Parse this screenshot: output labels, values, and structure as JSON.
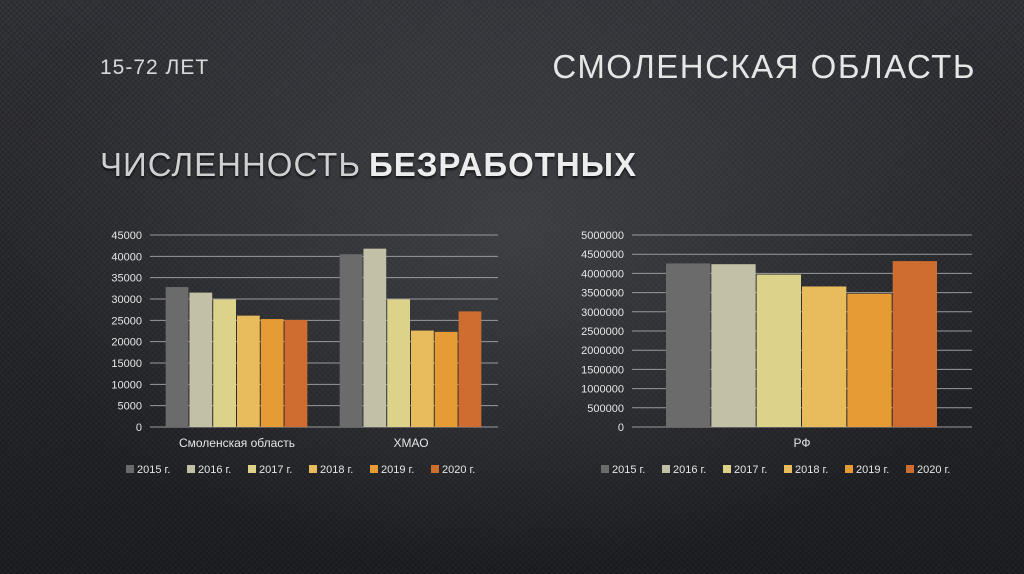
{
  "header": {
    "age_label": "15-72 ЛЕТ",
    "region_title": "СМОЛЕНСКАЯ ОБЛАСТЬ",
    "title_regular": "ЧИСЛЕННОСТЬ",
    "title_bold": "БЕЗРАБОТНЫХ"
  },
  "chart_data": [
    {
      "type": "bar",
      "categories": [
        "Смоленская область",
        "ХМАО"
      ],
      "series": [
        {
          "name": "2015 г.",
          "color": "#6b6b6b",
          "values": [
            32800,
            40500
          ]
        },
        {
          "name": "2016 г.",
          "color": "#c2c0a6",
          "values": [
            31500,
            41800
          ]
        },
        {
          "name": "2017 г.",
          "color": "#dcd28a",
          "values": [
            29900,
            29900
          ]
        },
        {
          "name": "2018 г.",
          "color": "#e8bb5c",
          "values": [
            26100,
            22600
          ]
        },
        {
          "name": "2019 г.",
          "color": "#e69b35",
          "values": [
            25300,
            22300
          ]
        },
        {
          "name": "2020 г.",
          "color": "#cf6d31",
          "values": [
            25100,
            27100
          ]
        }
      ],
      "ylim": [
        0,
        45000
      ],
      "yticks": [
        0,
        5000,
        10000,
        15000,
        20000,
        25000,
        30000,
        35000,
        40000,
        45000
      ],
      "grid": true,
      "legend": "bottom"
    },
    {
      "type": "bar",
      "categories": [
        "РФ"
      ],
      "series": [
        {
          "name": "2015 г.",
          "color": "#6b6b6b",
          "values": [
            4260000
          ]
        },
        {
          "name": "2016 г.",
          "color": "#c2c0a6",
          "values": [
            4240000
          ]
        },
        {
          "name": "2017 г.",
          "color": "#dcd28a",
          "values": [
            3970000
          ]
        },
        {
          "name": "2018 г.",
          "color": "#e8bb5c",
          "values": [
            3660000
          ]
        },
        {
          "name": "2019 г.",
          "color": "#e69b35",
          "values": [
            3470000
          ]
        },
        {
          "name": "2020 г.",
          "color": "#cf6d31",
          "values": [
            4320000
          ]
        }
      ],
      "ylim": [
        0,
        5000000
      ],
      "yticks": [
        0,
        500000,
        1000000,
        1500000,
        2000000,
        2500000,
        3000000,
        3500000,
        4000000,
        4500000,
        5000000
      ],
      "grid": true,
      "legend": "bottom"
    }
  ]
}
